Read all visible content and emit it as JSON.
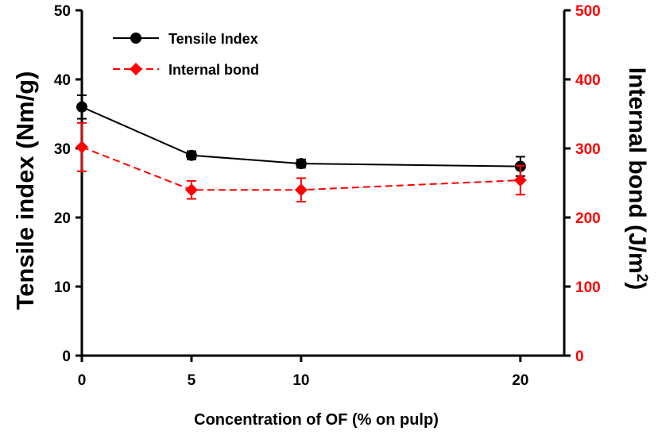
{
  "chart_data": {
    "type": "line",
    "title": "",
    "xlabel": "Concentration of OF (% on pulp)",
    "ylabel_left": "Tensile index (Nm/g)",
    "ylabel_right_prefix": "Internal bond (J/m",
    "ylabel_right_sup": "2",
    "ylabel_right_suffix": ")",
    "categories": [
      "0",
      "5",
      "10",
      "20"
    ],
    "x": [
      0,
      5,
      10,
      20
    ],
    "xlim": [
      0,
      22
    ],
    "ylim_left": [
      0,
      50
    ],
    "ylim_right": [
      0,
      500
    ],
    "left_ticks": [
      "0",
      "10",
      "20",
      "30",
      "40",
      "50"
    ],
    "right_ticks": [
      "0",
      "100",
      "200",
      "300",
      "400",
      "500"
    ],
    "grid": false,
    "legend_position": "top-left",
    "series": [
      {
        "name": "Tensile Index",
        "axis": "left",
        "color": "#000000",
        "marker": "circle",
        "line_style": "solid",
        "values": [
          36.0,
          29.0,
          27.8,
          27.4
        ],
        "errors": [
          1.7,
          0.6,
          0.6,
          1.4
        ]
      },
      {
        "name": "Internal bond",
        "axis": "right",
        "color": "#ff0000",
        "marker": "diamond",
        "line_style": "dashed",
        "values": [
          302,
          240,
          240,
          254
        ],
        "errors": [
          35,
          13,
          17,
          21
        ]
      }
    ]
  }
}
